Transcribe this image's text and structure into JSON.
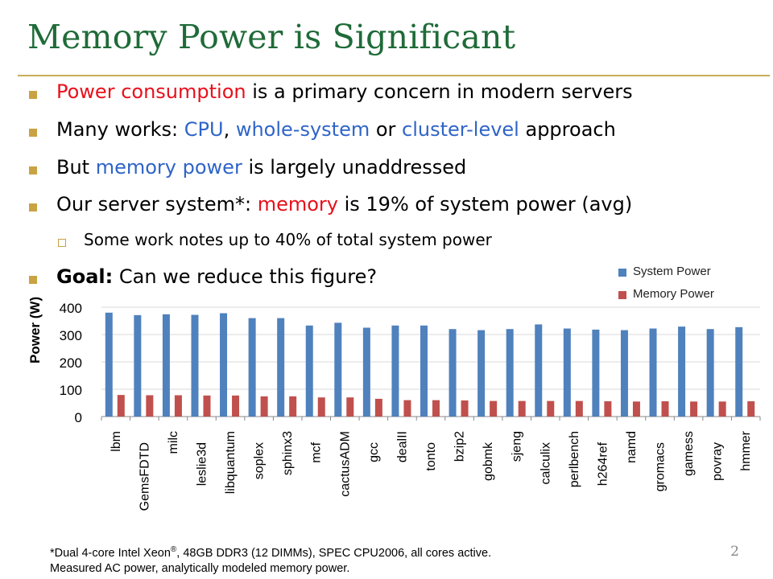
{
  "slide": {
    "title": "Memory Power is Significant",
    "page_number": "2",
    "colors": {
      "title": "#1f6b38",
      "rule": "#c9ad58",
      "bullet": "#c9a243",
      "red": "#e8101b",
      "blue": "#2f64c8"
    },
    "bullets": [
      {
        "parts": [
          {
            "t": "Power consumption",
            "c": "red"
          },
          {
            "t": " is a primary concern in modern servers"
          }
        ]
      },
      {
        "parts": [
          {
            "t": "Many works: "
          },
          {
            "t": "CPU",
            "c": "blue"
          },
          {
            "t": ", "
          },
          {
            "t": "whole-system",
            "c": "blue"
          },
          {
            "t": " or "
          },
          {
            "t": "cluster-level",
            "c": "blue"
          },
          {
            "t": " approach"
          }
        ]
      },
      {
        "parts": [
          {
            "t": "But "
          },
          {
            "t": "memory power",
            "c": "blue"
          },
          {
            "t": " is largely unaddressed"
          }
        ]
      },
      {
        "parts": [
          {
            "t": "Our server system"
          },
          {
            "t": "*"
          },
          {
            "t": ": "
          },
          {
            "t": "memory",
            "c": "red"
          },
          {
            "t": " is 19% of system power (avg)"
          }
        ]
      },
      {
        "sub": true,
        "parts": [
          {
            "t": "Some work notes up to 40% of total system power"
          }
        ]
      },
      {
        "parts": [
          {
            "t": "Goal:",
            "bold": true
          },
          {
            "t": " Can we reduce this figure?"
          }
        ]
      }
    ],
    "footnote_line1": "*Dual 4-core Intel Xeon",
    "footnote_reg": "®",
    "footnote_line1_rest": ", 48GB DDR3 (12 DIMMs), SPEC CPU2006, all cores active.",
    "footnote_line2": "Measured AC power, analytically modeled memory power."
  },
  "chart_data": {
    "type": "bar",
    "ylabel": "Power (W)",
    "ylim": [
      0,
      400
    ],
    "yticks": [
      0,
      100,
      200,
      300,
      400
    ],
    "legend_position": "top-right",
    "categories": [
      "lbm",
      "GemsFDTD",
      "milc",
      "leslie3d",
      "libquantum",
      "soplex",
      "sphinx3",
      "mcf",
      "cactusADM",
      "gcc",
      "dealII",
      "tonto",
      "bzip2",
      "gobmk",
      "sjeng",
      "calculix",
      "perlbench",
      "h264ref",
      "namd",
      "gromacs",
      "gamess",
      "povray",
      "hmmer"
    ],
    "series": [
      {
        "name": "System Power",
        "color": "#4f81bd",
        "values": [
          380,
          371,
          374,
          372,
          378,
          360,
          360,
          333,
          343,
          325,
          333,
          333,
          320,
          316,
          320,
          337,
          322,
          318,
          316,
          322,
          329,
          320,
          327
        ]
      },
      {
        "name": "Memory Power",
        "color": "#c0504d",
        "values": [
          79,
          78,
          78,
          77,
          77,
          74,
          74,
          70,
          70,
          65,
          60,
          60,
          59,
          57,
          57,
          57,
          57,
          56,
          55,
          56,
          55,
          55,
          56
        ]
      }
    ]
  }
}
